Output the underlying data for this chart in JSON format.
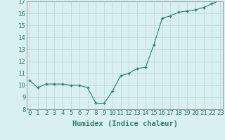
{
  "x": [
    0,
    1,
    2,
    3,
    4,
    5,
    6,
    7,
    8,
    9,
    10,
    11,
    12,
    13,
    14,
    15,
    16,
    17,
    18,
    19,
    20,
    21,
    22,
    23
  ],
  "y": [
    10.4,
    9.8,
    10.1,
    10.1,
    10.1,
    10.0,
    10.0,
    9.8,
    8.5,
    8.5,
    9.5,
    10.8,
    11.0,
    11.4,
    11.5,
    13.4,
    15.6,
    15.8,
    16.1,
    16.2,
    16.3,
    16.5,
    16.8,
    17.1
  ],
  "ylim": [
    8,
    17
  ],
  "yticks": [
    8,
    9,
    10,
    11,
    12,
    13,
    14,
    15,
    16,
    17
  ],
  "xticks": [
    0,
    1,
    2,
    3,
    4,
    5,
    6,
    7,
    8,
    9,
    10,
    11,
    12,
    13,
    14,
    15,
    16,
    17,
    18,
    19,
    20,
    21,
    22,
    23
  ],
  "xlabel": "Humidex (Indice chaleur)",
  "line_color": "#2e7d6e",
  "marker": "+",
  "bg_color": "#d8f0f0",
  "grid_color": "#c0d8d8",
  "spine_color": "#888888",
  "tick_color": "#2e7d6e",
  "xlabel_fontsize": 7.5,
  "tick_fontsize": 6.5,
  "xlim": [
    -0.3,
    23.3
  ]
}
